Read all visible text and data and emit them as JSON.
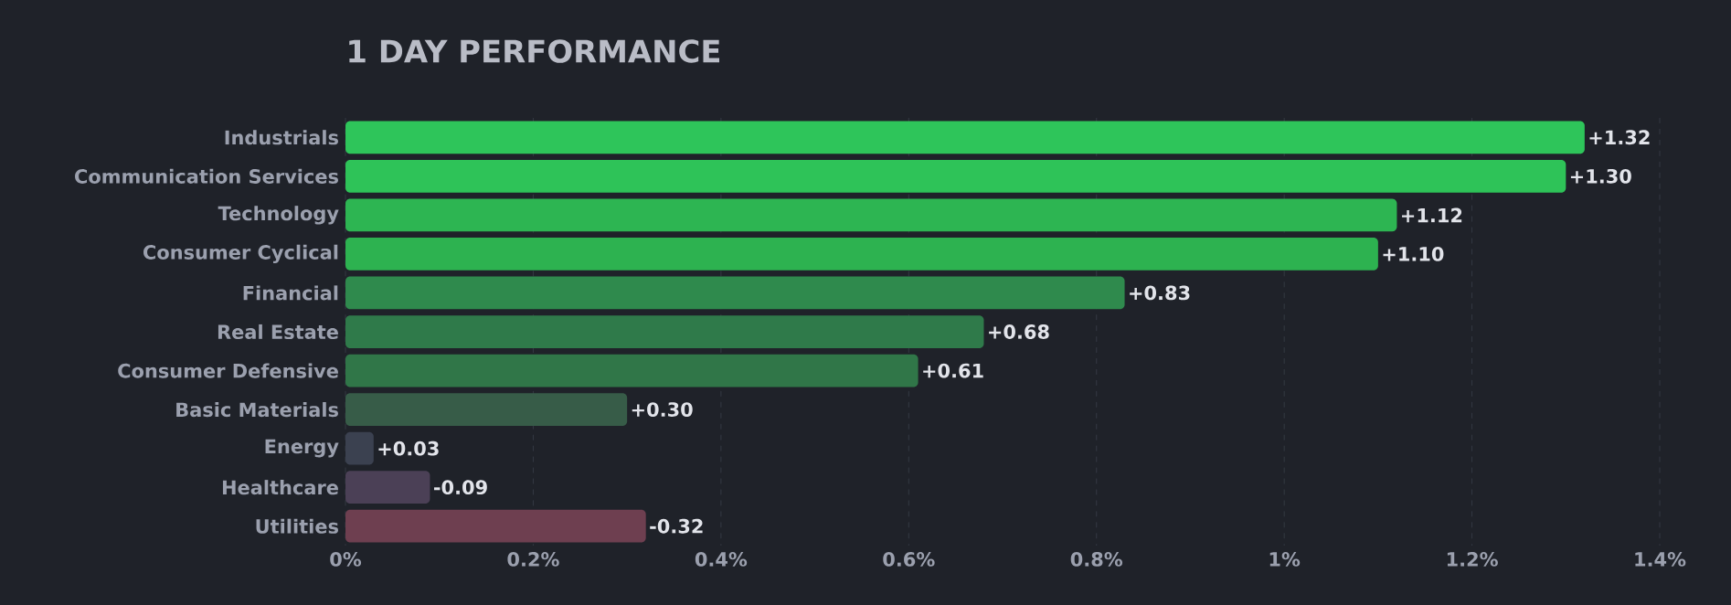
{
  "chart_data": {
    "type": "bar",
    "orientation": "horizontal",
    "title": "1 DAY PERFORMANCE",
    "categories": [
      "Industrials",
      "Communication Services",
      "Technology",
      "Consumer Cyclical",
      "Financial",
      "Real Estate",
      "Consumer Defensive",
      "Basic Materials",
      "Energy",
      "Healthcare",
      "Utilities"
    ],
    "values": [
      1.32,
      1.3,
      1.12,
      1.1,
      0.83,
      0.68,
      0.61,
      0.3,
      0.03,
      -0.09,
      -0.32
    ],
    "base": [
      0,
      0,
      0,
      0,
      0,
      0,
      0,
      0,
      0,
      0.09,
      0.32
    ],
    "value_labels": [
      "+1.32",
      "+1.30",
      "+1.12",
      "+1.10",
      "+0.83",
      "+0.68",
      "+0.61",
      "+0.30",
      "+0.03",
      "-0.09",
      "-0.32"
    ],
    "colors": [
      "#2ec55a",
      "#2ec358",
      "#2db552",
      "#2db250",
      "#2f8a4d",
      "#2f7a4a",
      "#307648",
      "#375c48",
      "#3b4150",
      "#4b4056",
      "#6e3f50"
    ],
    "xlim": [
      0,
      1.4
    ],
    "xticks": [
      {
        "value": 0,
        "label": "0%"
      },
      {
        "value": 0.2,
        "label": "0.2%"
      },
      {
        "value": 0.4,
        "label": "0.4%"
      },
      {
        "value": 0.6,
        "label": "0.6%"
      },
      {
        "value": 0.8,
        "label": "0.8%"
      },
      {
        "value": 1,
        "label": "1%"
      },
      {
        "value": 1.2,
        "label": "1.2%"
      },
      {
        "value": 1.4,
        "label": "1.4%"
      }
    ],
    "grid": "x"
  }
}
